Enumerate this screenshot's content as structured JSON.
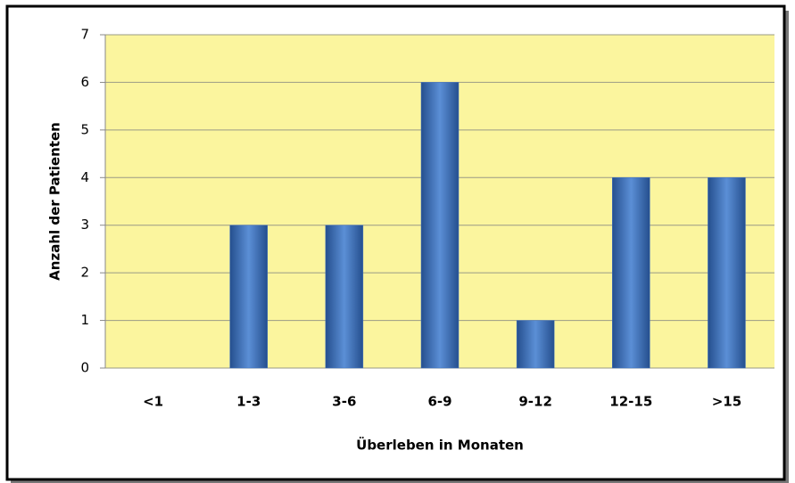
{
  "chart_data": {
    "type": "bar",
    "x_label": "Überleben in Monaten",
    "y_label": "Anzahl der Patienten",
    "categories": [
      "<1",
      "1-3",
      "3-6",
      "6-9",
      "9-12",
      "12-15",
      ">15"
    ],
    "values": [
      0,
      3,
      3,
      6,
      1,
      4,
      4
    ],
    "color": "#3d6fc0",
    "ylim": [
      0,
      7
    ],
    "yticks": [
      0,
      1,
      2,
      3,
      4,
      5,
      6,
      7
    ],
    "grid": true
  }
}
